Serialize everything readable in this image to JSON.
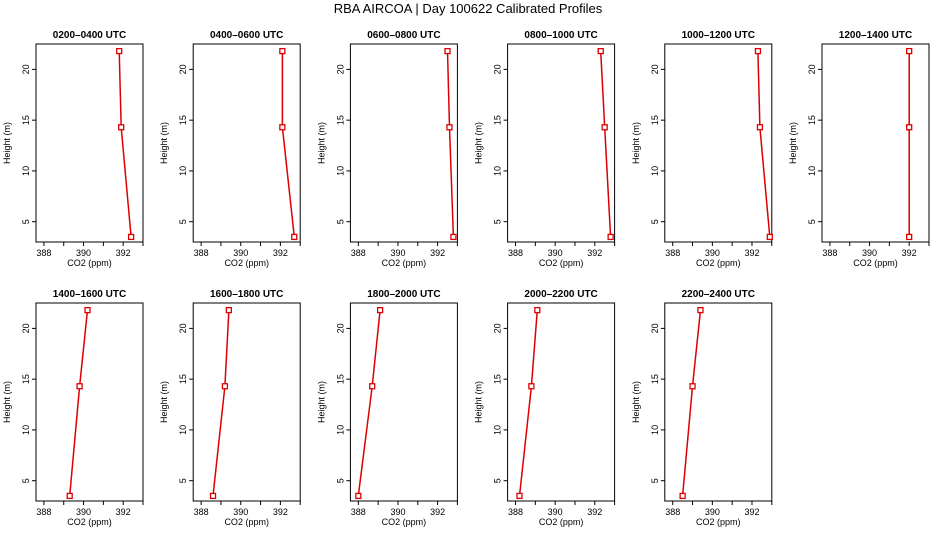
{
  "figure": {
    "title": "RBA AIRCOA |  Day 100622  Calibrated Profiles"
  },
  "colors": {
    "series": "#dd0000",
    "axis": "#000000"
  },
  "chart_data": [
    {
      "type": "line",
      "title": "0200–0400 UTC",
      "xlabel": "CO2 (ppm)",
      "ylabel": "Height (m)",
      "xlim": [
        387.6,
        393.0
      ],
      "ylim": [
        3.0,
        22.5
      ],
      "xticks": [
        388,
        390,
        392
      ],
      "yticks": [
        5,
        10,
        15,
        20
      ],
      "x": [
        392.4,
        391.9,
        391.8
      ],
      "y": [
        3.5,
        14.3,
        21.8
      ]
    },
    {
      "type": "line",
      "title": "0400–0600 UTC",
      "xlabel": "CO2 (ppm)",
      "ylabel": "Height (m)",
      "xlim": [
        387.6,
        393.0
      ],
      "ylim": [
        3.0,
        22.5
      ],
      "xticks": [
        388,
        390,
        392
      ],
      "yticks": [
        5,
        10,
        15,
        20
      ],
      "x": [
        392.7,
        392.1,
        392.1
      ],
      "y": [
        3.5,
        14.3,
        21.8
      ]
    },
    {
      "type": "line",
      "title": "0600–0800 UTC",
      "xlabel": "CO2 (ppm)",
      "ylabel": "Height (m)",
      "xlim": [
        387.6,
        393.0
      ],
      "ylim": [
        3.0,
        22.5
      ],
      "xticks": [
        388,
        390,
        392
      ],
      "yticks": [
        5,
        10,
        15,
        20
      ],
      "x": [
        392.8,
        392.6,
        392.5
      ],
      "y": [
        3.5,
        14.3,
        21.8
      ]
    },
    {
      "type": "line",
      "title": "0800–1000 UTC",
      "xlabel": "CO2 (ppm)",
      "ylabel": "Height (m)",
      "xlim": [
        387.6,
        393.0
      ],
      "ylim": [
        3.0,
        22.5
      ],
      "xticks": [
        388,
        390,
        392
      ],
      "yticks": [
        5,
        10,
        15,
        20
      ],
      "x": [
        392.8,
        392.5,
        392.3
      ],
      "y": [
        3.5,
        14.3,
        21.8
      ]
    },
    {
      "type": "line",
      "title": "1000–1200 UTC",
      "xlabel": "CO2 (ppm)",
      "ylabel": "Height (m)",
      "xlim": [
        387.6,
        393.0
      ],
      "ylim": [
        3.0,
        22.5
      ],
      "xticks": [
        388,
        390,
        392
      ],
      "yticks": [
        5,
        10,
        15,
        20
      ],
      "x": [
        392.9,
        392.4,
        392.3
      ],
      "y": [
        3.5,
        14.3,
        21.8
      ]
    },
    {
      "type": "line",
      "title": "1200–1400 UTC",
      "xlabel": "CO2 (ppm)",
      "ylabel": "Height (m)",
      "xlim": [
        387.6,
        393.0
      ],
      "ylim": [
        3.0,
        22.5
      ],
      "xticks": [
        388,
        390,
        392
      ],
      "yticks": [
        5,
        10,
        15,
        20
      ],
      "x": [
        392.0,
        392.0,
        392.0
      ],
      "y": [
        3.5,
        14.3,
        21.8
      ]
    },
    {
      "type": "line",
      "title": "1400–1600 UTC",
      "xlabel": "CO2 (ppm)",
      "ylabel": "Height (m)",
      "xlim": [
        387.6,
        393.0
      ],
      "ylim": [
        3.0,
        22.5
      ],
      "xticks": [
        388,
        390,
        392
      ],
      "yticks": [
        5,
        10,
        15,
        20
      ],
      "x": [
        389.3,
        389.8,
        390.2
      ],
      "y": [
        3.5,
        14.3,
        21.8
      ]
    },
    {
      "type": "line",
      "title": "1600–1800 UTC",
      "xlabel": "CO2 (ppm)",
      "ylabel": "Height (m)",
      "xlim": [
        387.6,
        393.0
      ],
      "ylim": [
        3.0,
        22.5
      ],
      "xticks": [
        388,
        390,
        392
      ],
      "yticks": [
        5,
        10,
        15,
        20
      ],
      "x": [
        388.6,
        389.2,
        389.4
      ],
      "y": [
        3.5,
        14.3,
        21.8
      ]
    },
    {
      "type": "line",
      "title": "1800–2000 UTC",
      "xlabel": "CO2 (ppm)",
      "ylabel": "Height (m)",
      "xlim": [
        387.6,
        393.0
      ],
      "ylim": [
        3.0,
        22.5
      ],
      "xticks": [
        388,
        390,
        392
      ],
      "yticks": [
        5,
        10,
        15,
        20
      ],
      "x": [
        388.0,
        388.7,
        389.1
      ],
      "y": [
        3.5,
        14.3,
        21.8
      ]
    },
    {
      "type": "line",
      "title": "2000–2200 UTC",
      "xlabel": "CO2 (ppm)",
      "ylabel": "Height (m)",
      "xlim": [
        387.6,
        393.0
      ],
      "ylim": [
        3.0,
        22.5
      ],
      "xticks": [
        388,
        390,
        392
      ],
      "yticks": [
        5,
        10,
        15,
        20
      ],
      "x": [
        388.2,
        388.8,
        389.1
      ],
      "y": [
        3.5,
        14.3,
        21.8
      ]
    },
    {
      "type": "line",
      "title": "2200–2400 UTC",
      "xlabel": "CO2 (ppm)",
      "ylabel": "Height (m)",
      "xlim": [
        387.6,
        393.0
      ],
      "ylim": [
        3.0,
        22.5
      ],
      "xticks": [
        388,
        390,
        392
      ],
      "yticks": [
        5,
        10,
        15,
        20
      ],
      "x": [
        388.5,
        389.0,
        389.4
      ],
      "y": [
        3.5,
        14.3,
        21.8
      ]
    }
  ]
}
